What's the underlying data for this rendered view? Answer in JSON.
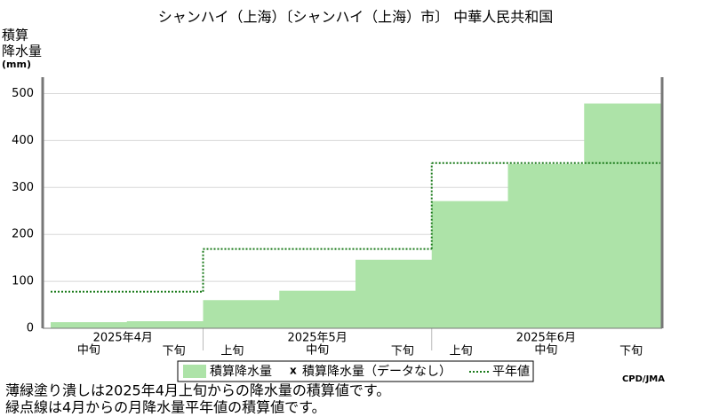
{
  "chart_data": {
    "type": "bar",
    "title": "シャンハイ（上海）〔シャンハイ（上海）市〕 中華人民共和国",
    "ylabel": [
      "積算",
      "降水量",
      "(mm)"
    ],
    "ylim": [
      0,
      535
    ],
    "yticks": [
      0,
      100,
      200,
      300,
      400,
      500
    ],
    "grid": true,
    "color": "#ade3a8",
    "normal_color": "#1a7a1a",
    "months": [
      {
        "label": "2025年4月",
        "dekads": [
          "中旬",
          "下旬"
        ],
        "values": [
          13,
          15
        ],
        "normal": 78
      },
      {
        "label": "2025年5月",
        "dekads": [
          "上旬",
          "中旬",
          "下旬"
        ],
        "values": [
          60,
          80,
          146
        ],
        "normal": 169
      },
      {
        "label": "2025年6月",
        "dekads": [
          "上旬",
          "中旬",
          "下旬"
        ],
        "values": [
          271,
          350,
          479
        ],
        "normal": 352
      }
    ],
    "legend": [
      "積算降水量",
      "x",
      "積算降水量（データなし）",
      "平年値"
    ],
    "credit": "CPD/JMA",
    "notes": [
      "薄緑塗り潰しは2025年4月上旬からの降水量の積算値です。",
      "緑点線は4月からの月降水量平年値の積算値です。"
    ]
  }
}
